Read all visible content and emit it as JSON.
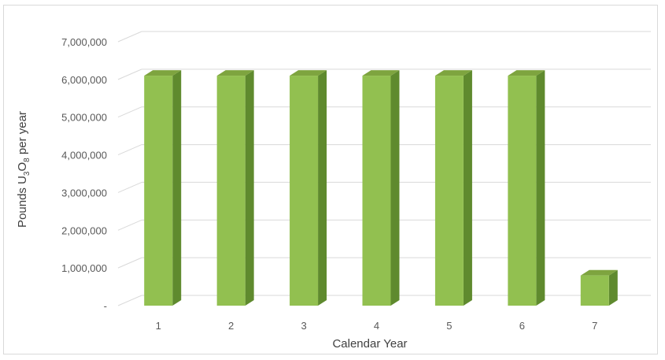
{
  "chart_data": {
    "type": "bar",
    "title": "",
    "xlabel": "Calendar Year",
    "ylabel": {
      "prefix": "Pounds U",
      "sub1": "3",
      "mid": "O",
      "sub2": "8",
      "suffix": " per year"
    },
    "categories": [
      "1",
      "2",
      "3",
      "4",
      "5",
      "6",
      "7"
    ],
    "values": [
      6100000,
      6100000,
      6100000,
      6100000,
      6100000,
      6100000,
      800000
    ],
    "ylim": [
      0,
      7000000
    ],
    "yticks": [
      0,
      1000000,
      2000000,
      3000000,
      4000000,
      5000000,
      6000000,
      7000000
    ],
    "ytick_labels": [
      "-",
      "1,000,000",
      "2,000,000",
      "3,000,000",
      "4,000,000",
      "5,000,000",
      "6,000,000",
      "7,000,000"
    ],
    "grid": true,
    "legend": "none",
    "style": "3d-column",
    "colors": {
      "front": "#92c050",
      "side": "#5f8a2e",
      "top": "#7ea43f",
      "grid": "#d9d9d9"
    }
  }
}
